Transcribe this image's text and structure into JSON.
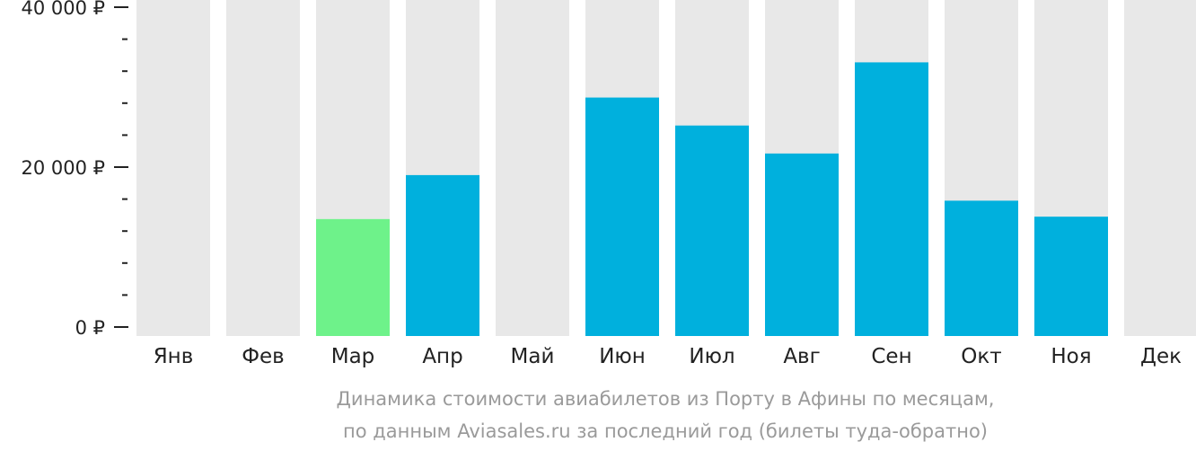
{
  "chart_data": {
    "type": "bar",
    "categories": [
      "Янв",
      "Фев",
      "Мар",
      "Апр",
      "Май",
      "Июн",
      "Июл",
      "Авг",
      "Сен",
      "Окт",
      "Ноя",
      "Дек"
    ],
    "values": [
      null,
      null,
      13500,
      19000,
      null,
      28700,
      25200,
      21700,
      33100,
      15800,
      13800,
      null
    ],
    "highlight_index": 2,
    "ylim": [
      0,
      40000
    ],
    "yticks": [
      {
        "value": 0,
        "label": "0 ₽"
      },
      {
        "value": 20000,
        "label": "20 000 ₽"
      },
      {
        "value": 40000,
        "label": "40 000 ₽"
      }
    ],
    "minor_tick_step": 4000,
    "grid": false,
    "colors": {
      "bar": "#00b0dd",
      "highlight": "#6ef28a",
      "background_bar": "#e8e8e8",
      "axis_text": "#222222",
      "caption_text": "#9a9a9a"
    }
  },
  "caption": {
    "line1": "Динамика стоимости авиабилетов из Порту в Афины по месяцам,",
    "line2": "по данным Aviasales.ru за последний год (билеты туда-обратно)"
  }
}
